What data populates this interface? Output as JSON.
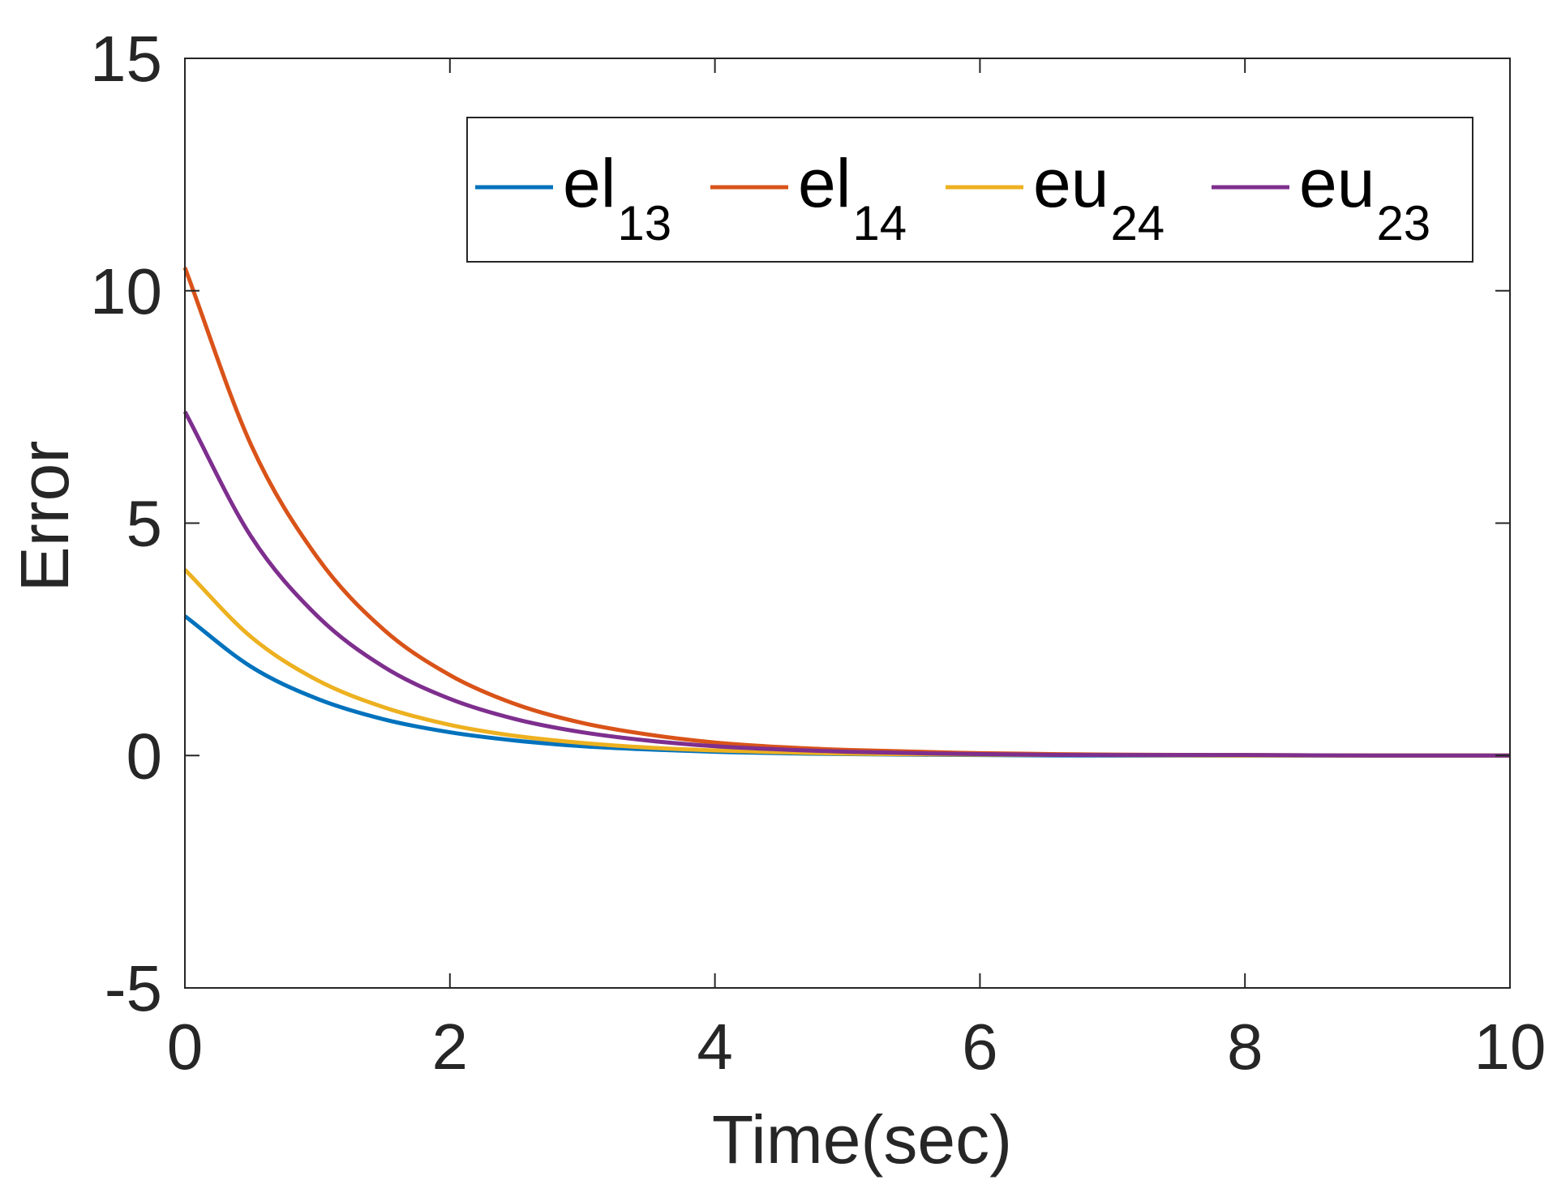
{
  "chart_data": {
    "type": "line",
    "xlabel": "Time(sec)",
    "ylabel": "Error",
    "xlim": [
      0,
      10
    ],
    "ylim": [
      -5,
      15
    ],
    "xticks": [
      "0",
      "2",
      "4",
      "6",
      "8",
      "10"
    ],
    "yticks": [
      "-5",
      "0",
      "5",
      "10",
      "15"
    ],
    "grid": false,
    "legend_position": "top-right",
    "legend_orientation": "horizontal",
    "series": [
      {
        "name": "el",
        "name_subscript": "13",
        "color": "#0072BD",
        "x": [
          0,
          0.5,
          1,
          1.5,
          2,
          2.5,
          3,
          3.5,
          4,
          4.5,
          5,
          6,
          7,
          8,
          9,
          10
        ],
        "y": [
          3.0,
          1.91,
          1.22,
          0.78,
          0.5,
          0.32,
          0.2,
          0.13,
          0.08,
          0.05,
          0.03,
          0.01,
          0.0,
          0.0,
          0.0,
          0.0
        ]
      },
      {
        "name": "el",
        "name_subscript": "14",
        "color": "#D95319",
        "x": [
          0,
          0.5,
          1,
          1.5,
          2,
          2.5,
          3,
          3.5,
          4,
          4.5,
          5,
          6,
          7,
          8,
          9,
          10
        ],
        "y": [
          10.5,
          6.68,
          4.26,
          2.71,
          1.73,
          1.1,
          0.7,
          0.45,
          0.28,
          0.18,
          0.12,
          0.05,
          0.02,
          0.01,
          0.0,
          0.0
        ]
      },
      {
        "name": "eu",
        "name_subscript": "24",
        "color": "#EDB120",
        "x": [
          0,
          0.5,
          1,
          1.5,
          2,
          2.5,
          3,
          3.5,
          4,
          4.5,
          5,
          6,
          7,
          8,
          9,
          10
        ],
        "y": [
          4.0,
          2.55,
          1.62,
          1.04,
          0.66,
          0.42,
          0.27,
          0.17,
          0.11,
          0.07,
          0.04,
          0.02,
          0.01,
          0.0,
          0.0,
          0.0
        ]
      },
      {
        "name": "eu",
        "name_subscript": "23",
        "color": "#7E2F8E",
        "x": [
          0,
          0.5,
          1,
          1.5,
          2,
          2.5,
          3,
          3.5,
          4,
          4.5,
          5,
          6,
          7,
          8,
          9,
          10
        ],
        "y": [
          7.4,
          4.71,
          3.0,
          1.91,
          1.22,
          0.78,
          0.5,
          0.32,
          0.2,
          0.13,
          0.08,
          0.03,
          0.01,
          0.01,
          0.0,
          0.0
        ]
      }
    ]
  }
}
